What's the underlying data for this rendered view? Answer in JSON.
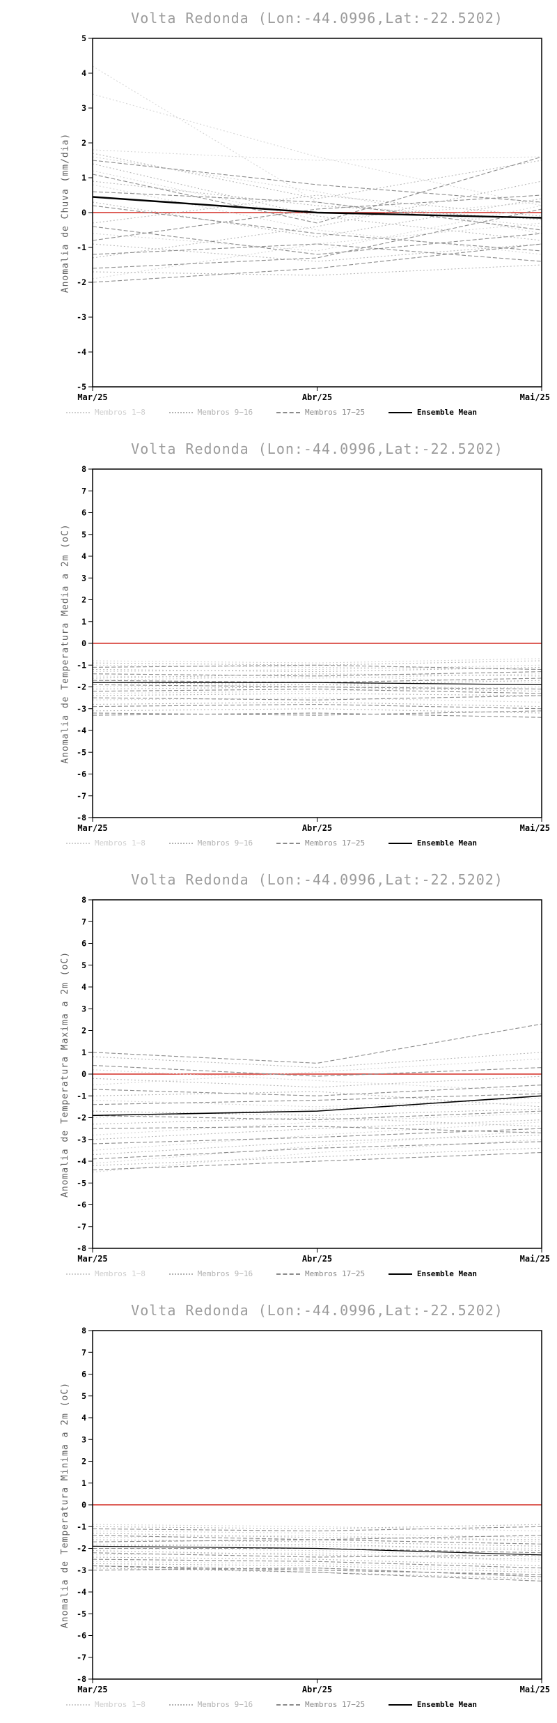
{
  "page": {
    "background": "#ffffff"
  },
  "legend": [
    {
      "label": "Membros 1−8",
      "color": "#cfcfcf",
      "style": "dotted",
      "bold": false
    },
    {
      "label": "Membros 9−16",
      "color": "#b2b2b2",
      "style": "dotted",
      "bold": false
    },
    {
      "label": "Membros 17−25",
      "color": "#8a8a8a",
      "style": "dashed",
      "bold": false
    },
    {
      "label": "Ensemble Mean",
      "color": "#000000",
      "style": "solid",
      "bold": true
    }
  ],
  "chart_data": [
    {
      "type": "line",
      "title": "Volta Redonda (Lon:-44.0996,Lat:-22.5202)",
      "ylabel": "Anomalia de Chuva (mm/dia)",
      "ylim": [
        -5,
        5
      ],
      "ytick_step": 1,
      "x_ticks": [
        "Mar/25",
        "Abr/25",
        "Mai/25"
      ],
      "zero_line_color": "#d94a43",
      "series_groups": [
        {
          "name": "Membros 1−8",
          "color": "#d6d6d6",
          "dash": "2 3",
          "members": [
            [
              4.2,
              0.3,
              -0.4
            ],
            [
              3.4,
              1.6,
              0.2
            ],
            [
              1.8,
              1.5,
              1.6
            ],
            [
              1.6,
              0.6,
              -0.6
            ],
            [
              1.2,
              -0.2,
              0.3
            ],
            [
              0.8,
              -0.5,
              -1.2
            ],
            [
              -0.6,
              -1.1,
              0.2
            ],
            [
              -1.9,
              -0.9,
              -0.3
            ]
          ]
        },
        {
          "name": "Membros 9−16",
          "color": "#b8b8b8",
          "dash": "2 3",
          "members": [
            [
              1.7,
              0.4,
              1.5
            ],
            [
              1.4,
              -0.1,
              -0.8
            ],
            [
              0.9,
              0.2,
              -0.2
            ],
            [
              0.3,
              -0.7,
              0.4
            ],
            [
              -0.3,
              0.5,
              -0.1
            ],
            [
              -0.9,
              -1.4,
              -0.9
            ],
            [
              -1.3,
              -0.4,
              0.9
            ],
            [
              -1.7,
              -1.8,
              -1.5
            ]
          ]
        },
        {
          "name": "Membros 17−25",
          "color": "#8c8c8c",
          "dash": "6 3",
          "members": [
            [
              1.5,
              0.8,
              0.3
            ],
            [
              1.1,
              -0.3,
              1.6
            ],
            [
              0.6,
              0.3,
              -0.5
            ],
            [
              0.2,
              -0.6,
              -1.1
            ],
            [
              -0.4,
              -1.2,
              -0.6
            ],
            [
              -0.8,
              0.1,
              0.5
            ],
            [
              -1.2,
              -0.9,
              -1.4
            ],
            [
              -1.6,
              -1.3,
              0.1
            ],
            [
              -2.0,
              -1.6,
              -0.9
            ]
          ]
        }
      ],
      "ensemble_mean": {
        "name": "Ensemble Mean",
        "color": "#000000",
        "width": 2.4,
        "values": [
          0.45,
          0.0,
          -0.15
        ]
      }
    },
    {
      "type": "line",
      "title": "Volta Redonda (Lon:-44.0996,Lat:-22.5202)",
      "ylabel": "Anomalia de Temperatura Media a 2m (oC)",
      "ylim": [
        -8,
        8
      ],
      "ytick_step": 1,
      "x_ticks": [
        "Mar/25",
        "Abr/25",
        "Mai/25"
      ],
      "zero_line_color": "#d94a43",
      "series_groups": [
        {
          "name": "Membros 1−8",
          "color": "#d6d6d6",
          "dash": "2 3",
          "members": [
            [
              -0.8,
              -0.9,
              -0.7
            ],
            [
              -1.0,
              -1.1,
              -1.2
            ],
            [
              -1.3,
              -1.2,
              -1.0
            ],
            [
              -1.5,
              -1.6,
              -1.4
            ],
            [
              -1.7,
              -1.5,
              -1.8
            ],
            [
              -2.0,
              -1.9,
              -2.1
            ],
            [
              -2.3,
              -2.2,
              -2.0
            ],
            [
              -2.6,
              -2.5,
              -2.7
            ]
          ]
        },
        {
          "name": "Membros 9−16",
          "color": "#b8b8b8",
          "dash": "2 3",
          "members": [
            [
              -0.9,
              -1.0,
              -0.8
            ],
            [
              -1.2,
              -1.3,
              -1.1
            ],
            [
              -1.6,
              -1.4,
              -1.5
            ],
            [
              -1.8,
              -1.9,
              -1.7
            ],
            [
              -2.1,
              -2.0,
              -2.2
            ],
            [
              -2.4,
              -2.3,
              -2.4
            ],
            [
              -2.8,
              -2.7,
              -2.9
            ],
            [
              -3.1,
              -3.0,
              -3.2
            ]
          ]
        },
        {
          "name": "Membros 17−25",
          "color": "#8c8c8c",
          "dash": "6 3",
          "members": [
            [
              -1.1,
              -1.0,
              -1.2
            ],
            [
              -1.4,
              -1.5,
              -1.3
            ],
            [
              -1.7,
              -1.8,
              -1.6
            ],
            [
              -1.9,
              -2.0,
              -2.1
            ],
            [
              -2.2,
              -2.1,
              -2.3
            ],
            [
              -2.5,
              -2.6,
              -2.4
            ],
            [
              -2.9,
              -2.8,
              -3.0
            ],
            [
              -3.2,
              -3.3,
              -3.1
            ],
            [
              -3.3,
              -3.2,
              -3.4
            ]
          ]
        }
      ],
      "ensemble_mean": {
        "name": "Ensemble Mean",
        "color": "#000000",
        "width": 1.2,
        "values": [
          -1.8,
          -1.8,
          -1.9
        ]
      }
    },
    {
      "type": "line",
      "title": "Volta Redonda (Lon:-44.0996,Lat:-22.5202)",
      "ylabel": "Anomalia de Temperatura Maxima a 2m (oC)",
      "ylim": [
        -8,
        8
      ],
      "ytick_step": 1,
      "x_ticks": [
        "Mar/25",
        "Abr/25",
        "Mai/25"
      ],
      "zero_line_color": "#d94a43",
      "series_groups": [
        {
          "name": "Membros 1−8",
          "color": "#d6d6d6",
          "dash": "2 3",
          "members": [
            [
              0.2,
              -0.3,
              -0.8
            ],
            [
              -0.5,
              0.1,
              0.7
            ],
            [
              -1.2,
              -1.5,
              -1.1
            ],
            [
              -2.0,
              -1.6,
              -1.3
            ],
            [
              -2.8,
              -2.2,
              -1.8
            ],
            [
              -3.5,
              -2.8,
              -2.2
            ],
            [
              -4.1,
              -3.3,
              -2.6
            ],
            [
              -4.5,
              -3.6,
              -3.0
            ]
          ]
        },
        {
          "name": "Membros 9−16",
          "color": "#b8b8b8",
          "dash": "2 3",
          "members": [
            [
              0.8,
              0.3,
              1.0
            ],
            [
              -0.2,
              -0.6,
              -0.1
            ],
            [
              -1.0,
              -0.8,
              -1.5
            ],
            [
              -1.7,
              -1.9,
              -1.6
            ],
            [
              -2.3,
              -2.0,
              -2.4
            ],
            [
              -3.0,
              -2.5,
              -2.1
            ],
            [
              -3.7,
              -3.1,
              -2.8
            ],
            [
              -4.2,
              -3.8,
              -3.4
            ]
          ]
        },
        {
          "name": "Membros 17−25",
          "color": "#8c8c8c",
          "dash": "6 3",
          "members": [
            [
              1.0,
              0.5,
              2.3
            ],
            [
              0.4,
              -0.1,
              0.3
            ],
            [
              -0.7,
              -1.0,
              -0.5
            ],
            [
              -1.4,
              -1.2,
              -0.9
            ],
            [
              -1.9,
              -2.1,
              -1.7
            ],
            [
              -2.5,
              -2.4,
              -2.7
            ],
            [
              -3.2,
              -2.9,
              -2.5
            ],
            [
              -3.9,
              -3.4,
              -3.1
            ],
            [
              -4.4,
              -4.0,
              -3.6
            ]
          ]
        }
      ],
      "ensemble_mean": {
        "name": "Ensemble Mean",
        "color": "#000000",
        "width": 1.6,
        "values": [
          -1.9,
          -1.7,
          -1.0
        ]
      }
    },
    {
      "type": "line",
      "title": "Volta Redonda (Lon:-44.0996,Lat:-22.5202)",
      "ylabel": "Anomalia de Temperatura Minima a 2m (oC)",
      "ylim": [
        -8,
        8
      ],
      "ytick_step": 1,
      "x_ticks": [
        "Mar/25",
        "Abr/25",
        "Mai/25"
      ],
      "zero_line_color": "#d94a43",
      "series_groups": [
        {
          "name": "Membros 1−8",
          "color": "#d6d6d6",
          "dash": "2 3",
          "members": [
            [
              -0.9,
              -1.0,
              -1.2
            ],
            [
              -1.2,
              -1.3,
              -1.5
            ],
            [
              -1.5,
              -1.4,
              -1.7
            ],
            [
              -1.8,
              -1.9,
              -2.0
            ],
            [
              -2.0,
              -2.1,
              -2.4
            ],
            [
              -2.3,
              -2.2,
              -2.6
            ],
            [
              -2.6,
              -2.7,
              -3.0
            ],
            [
              -2.8,
              -2.9,
              -3.3
            ]
          ]
        },
        {
          "name": "Membros 9−16",
          "color": "#b8b8b8",
          "dash": "2 3",
          "members": [
            [
              -1.0,
              -1.1,
              -0.9
            ],
            [
              -1.3,
              -1.5,
              -1.6
            ],
            [
              -1.6,
              -1.7,
              -1.9
            ],
            [
              -1.9,
              -1.8,
              -2.1
            ],
            [
              -2.1,
              -2.3,
              -2.5
            ],
            [
              -2.4,
              -2.5,
              -2.8
            ],
            [
              -2.7,
              -2.8,
              -3.1
            ],
            [
              -2.9,
              -3.1,
              -3.4
            ]
          ]
        },
        {
          "name": "Membros 17−25",
          "color": "#8c8c8c",
          "dash": "6 3",
          "members": [
            [
              -1.1,
              -1.2,
              -1.0
            ],
            [
              -1.4,
              -1.6,
              -1.4
            ],
            [
              -1.7,
              -1.6,
              -1.8
            ],
            [
              -2.0,
              -2.0,
              -2.2
            ],
            [
              -2.2,
              -2.4,
              -2.3
            ],
            [
              -2.5,
              -2.6,
              -2.9
            ],
            [
              -2.8,
              -3.0,
              -3.2
            ],
            [
              -3.0,
              -2.9,
              -3.3
            ],
            [
              -2.8,
              -3.1,
              -3.5
            ]
          ]
        }
      ],
      "ensemble_mean": {
        "name": "Ensemble Mean",
        "color": "#000000",
        "width": 1.2,
        "values": [
          -1.9,
          -2.0,
          -2.3
        ]
      }
    }
  ]
}
